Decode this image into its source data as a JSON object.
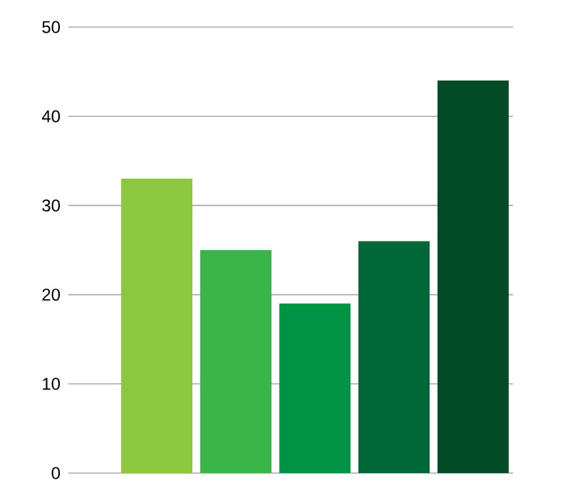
{
  "chart_data": {
    "type": "bar",
    "categories": [
      null,
      null,
      null,
      null,
      null
    ],
    "values": [
      33,
      25,
      19,
      26,
      44
    ],
    "colors": [
      "#8dc63f",
      "#39b54a",
      "#009444",
      "#006838",
      "#034a27"
    ],
    "ylim": [
      0,
      50
    ],
    "yticks": [
      0,
      10,
      20,
      30,
      40,
      50
    ],
    "grid": "y"
  }
}
